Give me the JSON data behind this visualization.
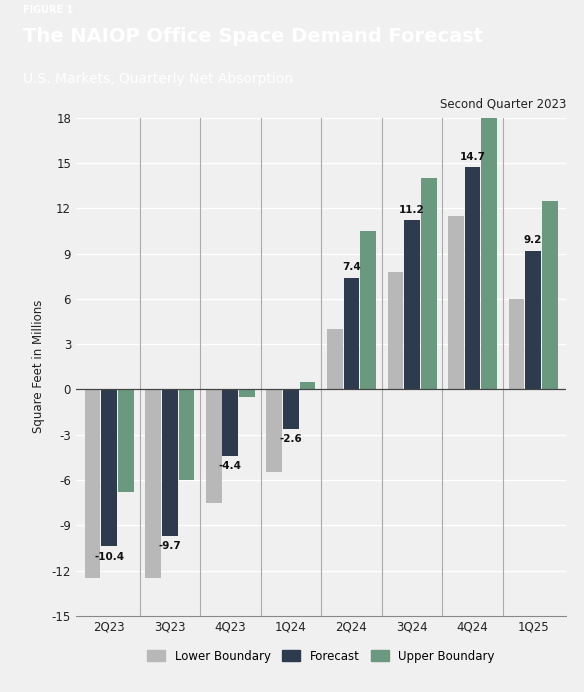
{
  "categories": [
    "2Q23",
    "3Q23",
    "4Q23",
    "1Q24",
    "2Q24",
    "3Q24",
    "4Q24",
    "1Q25"
  ],
  "lower_boundary": [
    -12.5,
    -12.5,
    -7.5,
    -5.5,
    4.0,
    7.8,
    11.5,
    6.0
  ],
  "forecast": [
    -10.4,
    -9.7,
    -4.4,
    -2.6,
    7.4,
    11.2,
    14.7,
    9.2
  ],
  "upper_boundary": [
    -6.8,
    -6.0,
    -0.5,
    0.5,
    10.5,
    14.0,
    18.0,
    12.5
  ],
  "forecast_labels": [
    "-10.4",
    "-9.7",
    "-4.4",
    "-2.6",
    "7.4",
    "11.2",
    "14.7",
    "9.2"
  ],
  "color_lower": "#b8b8b8",
  "color_forecast": "#2e3a4e",
  "color_upper": "#6a9980",
  "title_label": "FIGURE 1",
  "title_main": "The NAIOP Office Space Demand Forecast",
  "title_sub": "U.S. Markets, Quarterly Net Absorption",
  "annotation": "Second Quarter 2023",
  "ylabel": "Square Feet in Millions",
  "ylim": [
    -15,
    18
  ],
  "yticks": [
    -15,
    -12,
    -9,
    -6,
    -3,
    0,
    3,
    6,
    9,
    12,
    15,
    18
  ],
  "header_bg": "#5c6570",
  "header_text": "#ffffff",
  "plot_bg": "#f0f0f0",
  "legend_labels": [
    "Lower Boundary",
    "Forecast",
    "Upper Boundary"
  ]
}
